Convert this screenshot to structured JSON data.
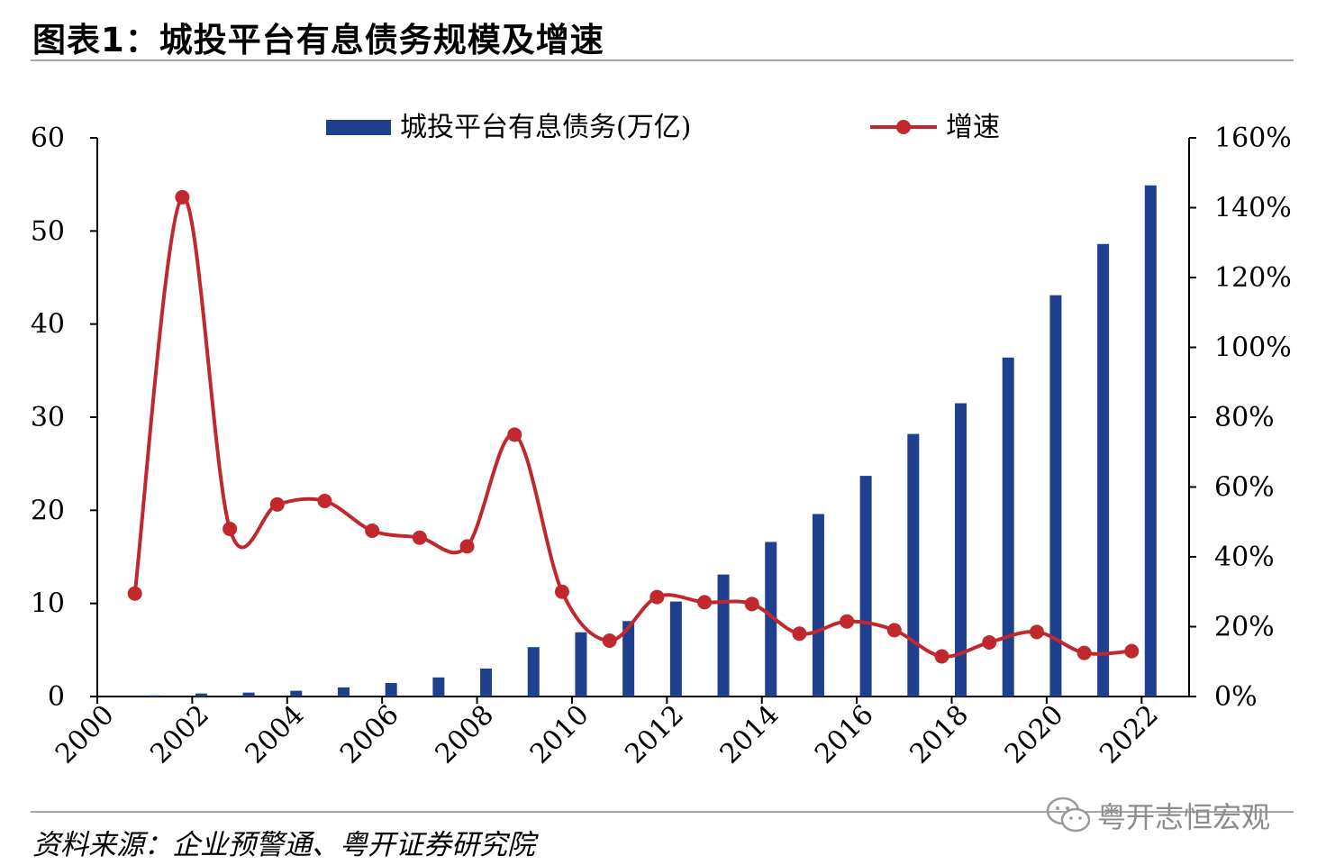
{
  "title": "图表1：城投平台有息债务规模及增速",
  "source": "资料来源：企业预警通、粤开证券研究院",
  "watermark": "粤开志恒宏观",
  "chart_data": {
    "type": "bar+line",
    "x_tick_labels": [
      "2000",
      "2002",
      "2004",
      "2006",
      "2008",
      "2010",
      "2012",
      "2014",
      "2016",
      "2018",
      "2020",
      "2022"
    ],
    "categories": [
      2001,
      2002,
      2003,
      2004,
      2005,
      2006,
      2007,
      2008,
      2009,
      2010,
      2011,
      2012,
      2013,
      2014,
      2015,
      2016,
      2017,
      2018,
      2019,
      2020,
      2021,
      2022
    ],
    "series": [
      {
        "name": "城投平台有息债务(万亿)",
        "type": "bar",
        "axis": "left",
        "color": "#1f3f8f",
        "values": [
          0.12,
          0.32,
          0.42,
          0.62,
          0.98,
          1.45,
          2.05,
          3.0,
          5.3,
          6.9,
          8.1,
          10.2,
          13.1,
          16.6,
          19.6,
          23.7,
          28.2,
          31.5,
          36.4,
          43.1,
          48.6,
          54.9
        ]
      },
      {
        "name": "增速",
        "type": "line",
        "axis": "right",
        "color": "#c0282d",
        "values": [
          0.295,
          1.43,
          0.48,
          0.55,
          0.56,
          0.475,
          0.455,
          0.43,
          0.75,
          0.3,
          0.16,
          0.285,
          0.27,
          0.265,
          0.18,
          0.215,
          0.19,
          0.115,
          0.155,
          0.185,
          0.125,
          0.13
        ]
      }
    ],
    "y_left": {
      "min": 0,
      "max": 60,
      "ticks": [
        0,
        10,
        20,
        30,
        40,
        50,
        60
      ]
    },
    "y_right": {
      "min": 0,
      "max": 1.6,
      "ticks": [
        0,
        0.2,
        0.4,
        0.6,
        0.8,
        1.0,
        1.2,
        1.4,
        1.6
      ],
      "tick_labels": [
        "0%",
        "20%",
        "40%",
        "60%",
        "80%",
        "100%",
        "120%",
        "140%",
        "160%"
      ]
    },
    "legend": "top-center",
    "grid": false
  }
}
